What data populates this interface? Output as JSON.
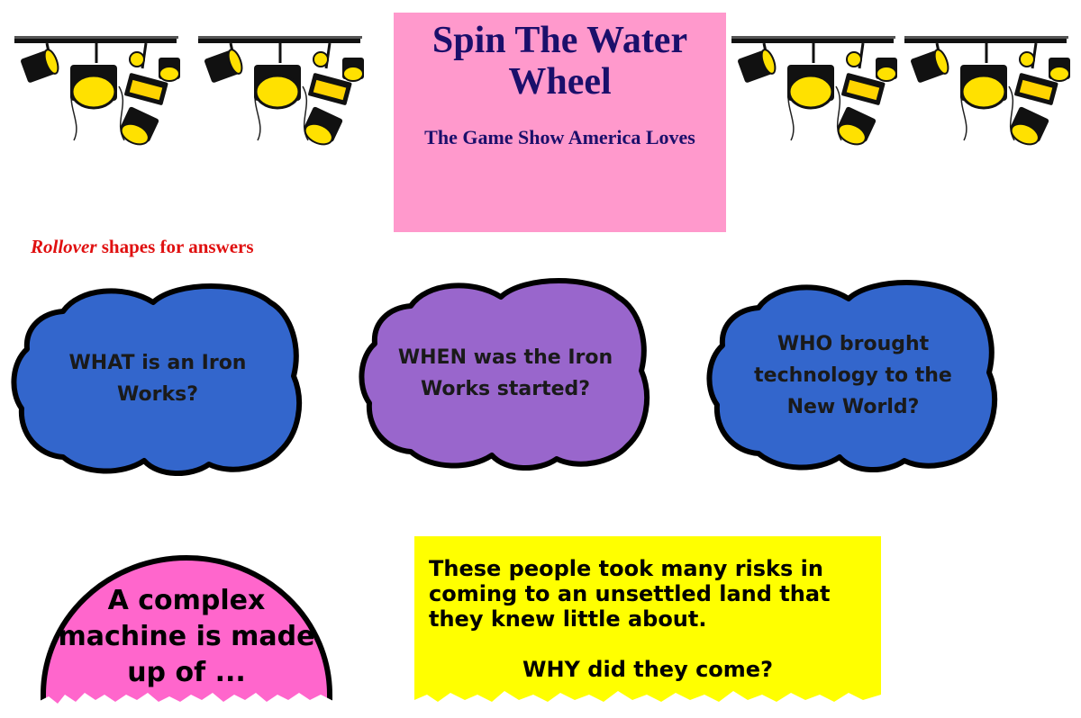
{
  "header": {
    "title": "Spin The Water Wheel",
    "subtitle": "The Game Show America Loves",
    "title_bg": "#ff99cc"
  },
  "instruction": {
    "emphasis": "Rollover",
    "rest": " shapes for answers"
  },
  "decor": {
    "stage_lights": [
      "stage-lights-icon",
      "stage-lights-icon",
      "stage-lights-icon",
      "stage-lights-icon"
    ]
  },
  "questions": [
    {
      "text": "WHAT is an Iron Works?",
      "color": "#3366cc"
    },
    {
      "text": "WHEN was the Iron Works started?",
      "color": "#9966cc"
    },
    {
      "text": "WHO brought technology to the New World?",
      "color": "#3366cc"
    }
  ],
  "semicircle": {
    "text": "A complex machine is made up of ...",
    "color": "#ff66cc"
  },
  "note": {
    "text": "These people took many risks in coming to an unsettled land that they knew little about.",
    "question": "WHY did they come?",
    "color": "#ffff00"
  }
}
